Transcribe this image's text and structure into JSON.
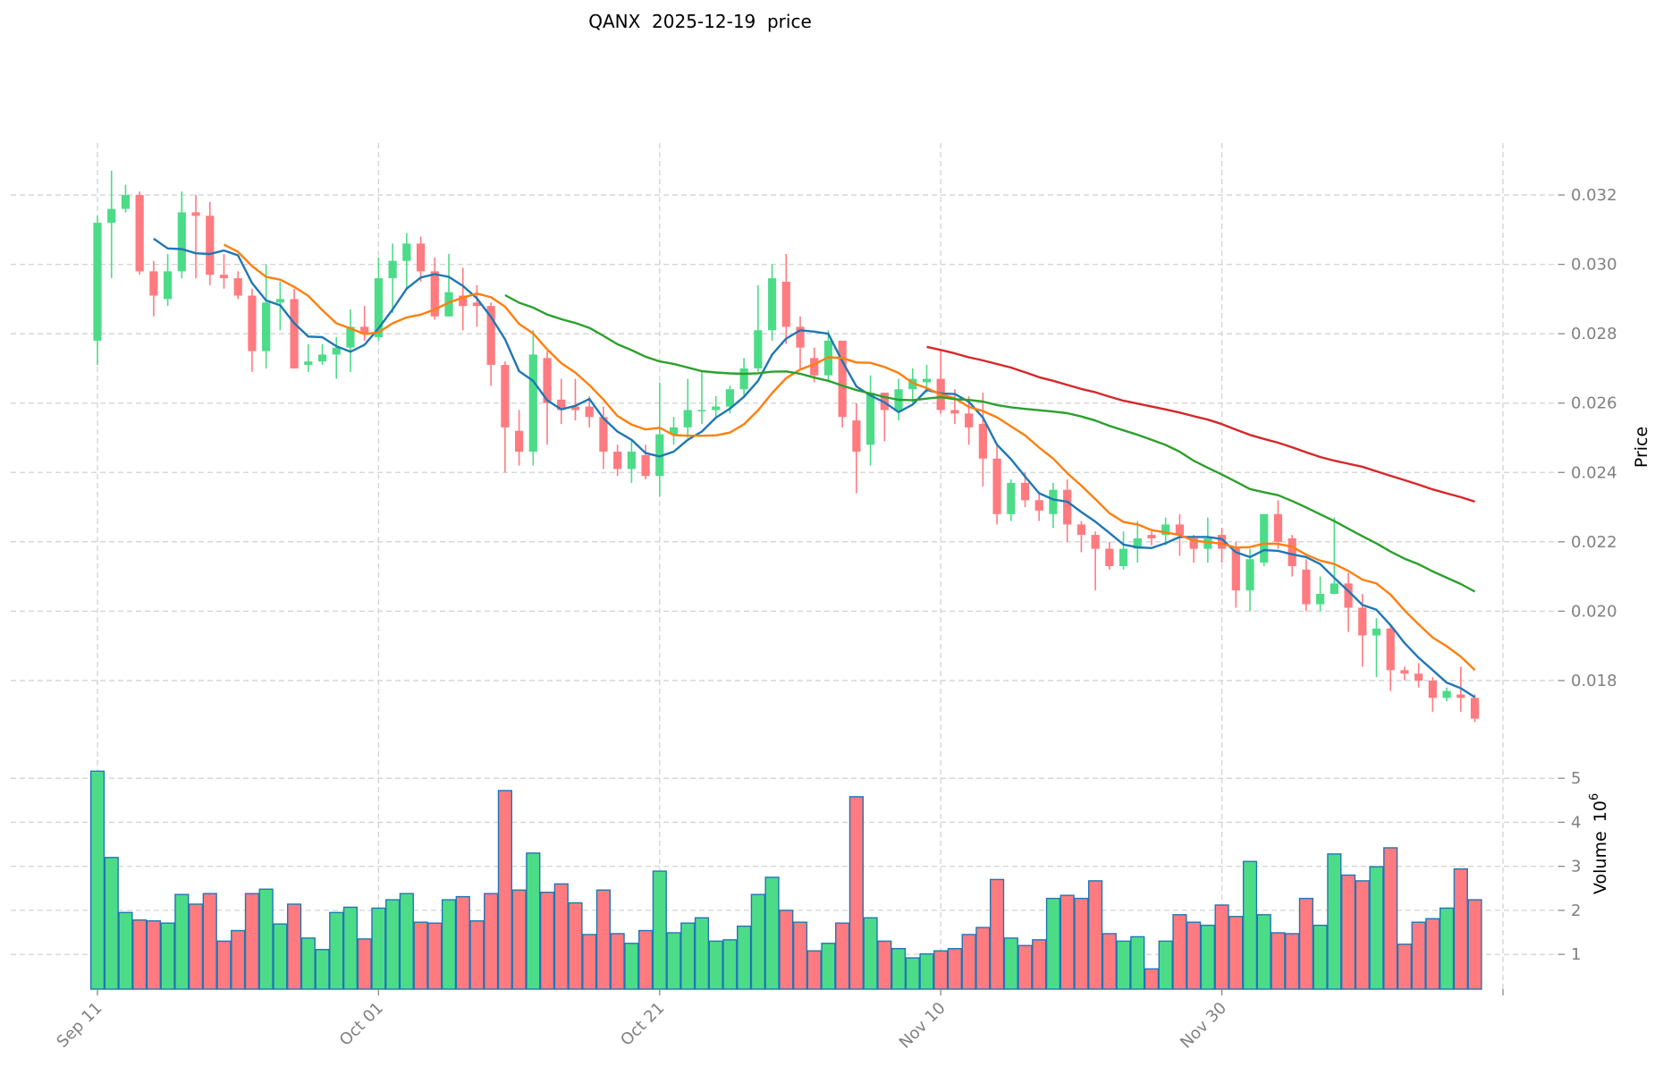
{
  "chart_data": {
    "type": "candlestick",
    "title": "QANX  2025-12-19  price",
    "ylabel": "Price",
    "volume_label": "Volume",
    "volume_exponent_base": "10",
    "volume_exponent": "6",
    "ylim": [
      0.0164,
      0.0336
    ],
    "volume_ylim": [
      0.21,
      5.41
    ],
    "grid": true,
    "x_ticks": [
      {
        "index": 0,
        "label": "Sep 11"
      },
      {
        "index": 20,
        "label": "Oct 01"
      },
      {
        "index": 40,
        "label": "Oct 21"
      },
      {
        "index": 60,
        "label": "Nov 10"
      },
      {
        "index": 80,
        "label": "Nov 30"
      },
      {
        "index": 100,
        "label": ""
      }
    ],
    "y_ticks": [
      "0.018",
      "0.020",
      "0.022",
      "0.024",
      "0.026",
      "0.028",
      "0.030",
      "0.032"
    ],
    "volume_ticks": [
      "1",
      "2",
      "3",
      "4",
      "5"
    ],
    "moving_averages": [
      {
        "period": 5,
        "color": "#1f77b4"
      },
      {
        "period": 10,
        "color": "#ff7f0e"
      },
      {
        "period": 30,
        "color": "#2ca02c"
      },
      {
        "period": 60,
        "color": "#d62728"
      }
    ],
    "colors": {
      "up": "#4cdc88",
      "down": "#ff7b80",
      "volume_edge": "#1f77b4",
      "grid": "#d3d3d3"
    },
    "ohlcv_columns": [
      "open",
      "high",
      "low",
      "close",
      "volume_millions"
    ],
    "ohlcv": [
      [
        0.0278,
        0.0314,
        0.0271,
        0.0312,
        5.16
      ],
      [
        0.0312,
        0.0327,
        0.0296,
        0.0316,
        3.2
      ],
      [
        0.0316,
        0.0323,
        0.0315,
        0.032,
        1.95
      ],
      [
        0.032,
        0.0321,
        0.0297,
        0.0298,
        1.78
      ],
      [
        0.0298,
        0.0301,
        0.0285,
        0.0291,
        1.76
      ],
      [
        0.029,
        0.0303,
        0.0288,
        0.0298,
        1.71
      ],
      [
        0.0298,
        0.0321,
        0.0296,
        0.0315,
        2.36
      ],
      [
        0.0315,
        0.032,
        0.0296,
        0.0314,
        2.14
      ],
      [
        0.0314,
        0.0318,
        0.0294,
        0.0297,
        2.38
      ],
      [
        0.0297,
        0.0303,
        0.0293,
        0.0296,
        1.3
      ],
      [
        0.0296,
        0.0298,
        0.029,
        0.0291,
        1.54
      ],
      [
        0.0291,
        0.0293,
        0.0269,
        0.0275,
        2.38
      ],
      [
        0.0275,
        0.03,
        0.027,
        0.0289,
        2.48
      ],
      [
        0.0289,
        0.0295,
        0.0281,
        0.029,
        1.69
      ],
      [
        0.029,
        0.0293,
        0.027,
        0.027,
        2.14
      ],
      [
        0.0271,
        0.0277,
        0.0269,
        0.0272,
        1.37
      ],
      [
        0.0272,
        0.0277,
        0.0271,
        0.0274,
        1.11
      ],
      [
        0.0274,
        0.0279,
        0.0267,
        0.0276,
        1.95
      ],
      [
        0.0276,
        0.0287,
        0.0269,
        0.0282,
        2.07
      ],
      [
        0.0282,
        0.0288,
        0.0278,
        0.028,
        1.35
      ],
      [
        0.0279,
        0.0302,
        0.0278,
        0.0296,
        2.05
      ],
      [
        0.0296,
        0.0306,
        0.0286,
        0.0301,
        2.24
      ],
      [
        0.0301,
        0.0309,
        0.0293,
        0.0306,
        2.38
      ],
      [
        0.0306,
        0.0308,
        0.0295,
        0.0298,
        1.73
      ],
      [
        0.0298,
        0.0302,
        0.0284,
        0.0285,
        1.71
      ],
      [
        0.0285,
        0.0303,
        0.0285,
        0.0292,
        2.24
      ],
      [
        0.0291,
        0.0299,
        0.0281,
        0.0288,
        2.31
      ],
      [
        0.0289,
        0.0294,
        0.0282,
        0.0288,
        1.76
      ],
      [
        0.0288,
        0.0289,
        0.0265,
        0.0271,
        2.38
      ],
      [
        0.0271,
        0.0272,
        0.024,
        0.0253,
        4.72
      ],
      [
        0.0252,
        0.0258,
        0.0242,
        0.0246,
        2.46
      ],
      [
        0.0246,
        0.0281,
        0.0242,
        0.0274,
        3.3
      ],
      [
        0.0273,
        0.0275,
        0.0248,
        0.026,
        2.41
      ],
      [
        0.0261,
        0.0267,
        0.0254,
        0.0258,
        2.6
      ],
      [
        0.0259,
        0.0267,
        0.0255,
        0.0258,
        2.17
      ],
      [
        0.0259,
        0.0262,
        0.0253,
        0.0256,
        1.45
      ],
      [
        0.0256,
        0.0259,
        0.0241,
        0.0246,
        2.46
      ],
      [
        0.0246,
        0.0248,
        0.0239,
        0.0241,
        1.47
      ],
      [
        0.0241,
        0.0249,
        0.0237,
        0.0246,
        1.25
      ],
      [
        0.0245,
        0.0248,
        0.0238,
        0.0239,
        1.54
      ],
      [
        0.0239,
        0.0266,
        0.0233,
        0.0251,
        2.89
      ],
      [
        0.0251,
        0.0256,
        0.0248,
        0.0253,
        1.49
      ],
      [
        0.0253,
        0.0267,
        0.025,
        0.0258,
        1.71
      ],
      [
        0.0258,
        0.0269,
        0.0254,
        0.0258,
        1.83
      ],
      [
        0.0258,
        0.0262,
        0.0256,
        0.0259,
        1.3
      ],
      [
        0.0259,
        0.0265,
        0.0257,
        0.0264,
        1.33
      ],
      [
        0.0264,
        0.0273,
        0.0262,
        0.027,
        1.64
      ],
      [
        0.027,
        0.0294,
        0.0269,
        0.0281,
        2.36
      ],
      [
        0.0281,
        0.03,
        0.0278,
        0.0296,
        2.75
      ],
      [
        0.0295,
        0.0303,
        0.0277,
        0.0282,
        2.0
      ],
      [
        0.0282,
        0.0285,
        0.027,
        0.0276,
        1.73
      ],
      [
        0.0273,
        0.0276,
        0.0266,
        0.0268,
        1.08
      ],
      [
        0.0268,
        0.0281,
        0.0266,
        0.0278,
        1.25
      ],
      [
        0.0278,
        0.0278,
        0.0253,
        0.0256,
        1.71
      ],
      [
        0.0255,
        0.026,
        0.0234,
        0.0246,
        4.58
      ],
      [
        0.0248,
        0.0268,
        0.0242,
        0.0263,
        1.83
      ],
      [
        0.0263,
        0.0263,
        0.0249,
        0.0258,
        1.3
      ],
      [
        0.0258,
        0.0267,
        0.0255,
        0.0264,
        1.13
      ],
      [
        0.0264,
        0.027,
        0.026,
        0.0267,
        0.92
      ],
      [
        0.0266,
        0.0271,
        0.0263,
        0.0267,
        1.01
      ],
      [
        0.0267,
        0.0275,
        0.0257,
        0.0258,
        1.08
      ],
      [
        0.0258,
        0.0264,
        0.0254,
        0.0257,
        1.13
      ],
      [
        0.0257,
        0.0262,
        0.0248,
        0.0253,
        1.45
      ],
      [
        0.0254,
        0.0263,
        0.0236,
        0.0244,
        1.61
      ],
      [
        0.0244,
        0.0248,
        0.0225,
        0.0228,
        2.7
      ],
      [
        0.0228,
        0.0238,
        0.0226,
        0.0237,
        1.37
      ],
      [
        0.0237,
        0.024,
        0.023,
        0.0232,
        1.2
      ],
      [
        0.0232,
        0.0234,
        0.0226,
        0.0229,
        1.33
      ],
      [
        0.0228,
        0.0237,
        0.0224,
        0.0235,
        2.27
      ],
      [
        0.0235,
        0.0238,
        0.022,
        0.0225,
        2.34
      ],
      [
        0.0225,
        0.0226,
        0.0217,
        0.0222,
        2.27
      ],
      [
        0.0222,
        0.0223,
        0.0206,
        0.0218,
        2.67
      ],
      [
        0.0218,
        0.022,
        0.0212,
        0.0213,
        1.47
      ],
      [
        0.0213,
        0.0223,
        0.0212,
        0.0218,
        1.3
      ],
      [
        0.0218,
        0.0226,
        0.0214,
        0.0221,
        1.4
      ],
      [
        0.0222,
        0.0223,
        0.0219,
        0.0221,
        0.67
      ],
      [
        0.0222,
        0.0227,
        0.0219,
        0.0225,
        1.3
      ],
      [
        0.0225,
        0.0228,
        0.0216,
        0.0222,
        1.9
      ],
      [
        0.0221,
        0.0222,
        0.0214,
        0.0218,
        1.73
      ],
      [
        0.0218,
        0.0227,
        0.0214,
        0.0221,
        1.66
      ],
      [
        0.0222,
        0.0224,
        0.0214,
        0.0218,
        2.12
      ],
      [
        0.0218,
        0.022,
        0.0201,
        0.0206,
        1.86
      ],
      [
        0.0206,
        0.0218,
        0.02,
        0.0215,
        3.11
      ],
      [
        0.0214,
        0.0228,
        0.0213,
        0.0228,
        1.9
      ],
      [
        0.0228,
        0.0232,
        0.0218,
        0.022,
        1.49
      ],
      [
        0.0221,
        0.0222,
        0.021,
        0.0213,
        1.47
      ],
      [
        0.0212,
        0.0215,
        0.02,
        0.0202,
        2.27
      ],
      [
        0.0202,
        0.021,
        0.02,
        0.0205,
        1.66
      ],
      [
        0.0205,
        0.0227,
        0.0205,
        0.0208,
        3.28
      ],
      [
        0.0208,
        0.0211,
        0.0194,
        0.0201,
        2.8
      ],
      [
        0.0201,
        0.0205,
        0.0184,
        0.0193,
        2.67
      ],
      [
        0.0193,
        0.0198,
        0.0181,
        0.0195,
        2.99
      ],
      [
        0.0195,
        0.0196,
        0.0177,
        0.0183,
        3.42
      ],
      [
        0.0183,
        0.0184,
        0.018,
        0.0182,
        1.23
      ],
      [
        0.0182,
        0.0185,
        0.0178,
        0.018,
        1.73
      ],
      [
        0.018,
        0.0181,
        0.0171,
        0.0175,
        1.81
      ],
      [
        0.0175,
        0.0178,
        0.0174,
        0.0177,
        2.05
      ],
      [
        0.0176,
        0.0184,
        0.0171,
        0.0175,
        2.94
      ],
      [
        0.0175,
        0.0176,
        0.0168,
        0.0169,
        2.24
      ]
    ]
  }
}
